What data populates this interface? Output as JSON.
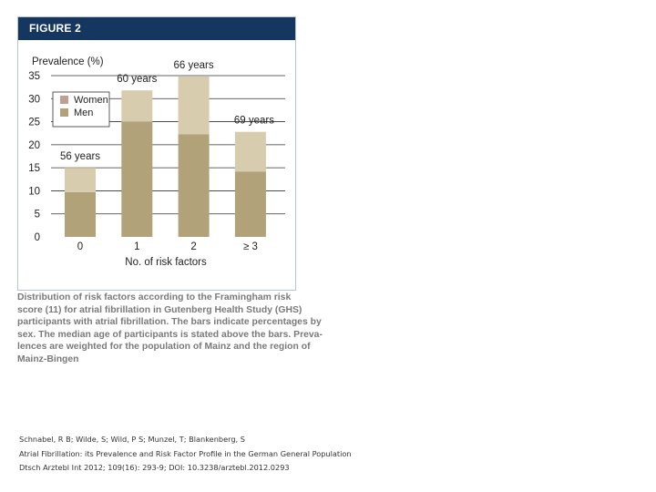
{
  "figure": {
    "label": "FIGURE 2"
  },
  "chart_data": {
    "type": "bar",
    "stacked": true,
    "ylabel": "Prevalence (%)",
    "xlabel": "No. of risk factors",
    "categories": [
      "0",
      "1",
      "2",
      "≥ 3"
    ],
    "ylim": [
      0,
      35
    ],
    "yticks": [
      0,
      5,
      10,
      15,
      20,
      25,
      30,
      35
    ],
    "series": [
      {
        "name": "Men",
        "color": "#b2a27a",
        "values": [
          9.7,
          25.0,
          22.3,
          14.2
        ]
      },
      {
        "name": "Women",
        "color": "#d8ccae",
        "values": [
          5.3,
          6.8,
          12.5,
          8.6
        ]
      }
    ],
    "bar_labels": [
      "56 years",
      "60 years",
      "66 years",
      "69 years"
    ],
    "legend": {
      "placement": "top-left",
      "entries": [
        "Women",
        "Men"
      ]
    },
    "grid": true
  },
  "caption": {
    "lines": [
      "Distribution of risk factors according to the Framingham risk",
      "score (11) for atrial fibrillation in Gutenberg Health Study (GHS)",
      "participants with atrial fibrillation. The bars indicate percentages by",
      "sex. The median age of participants is stated above the bars. Preva-",
      "lences are weighted for the population of Mainz and the region of",
      "Mainz-Bingen"
    ]
  },
  "citation": {
    "lines": [
      "Schnabel, R B; Wilde, S; Wild, P S; Munzel, T; Blankenberg, S",
      "Atrial Fibrillation: its Prevalence and Risk Factor Profile in the German General Population",
      "Dtsch Arztebl Int 2012; 109(16): 293-9; DOI: 10.3238/arztebl.2012.0293"
    ]
  }
}
